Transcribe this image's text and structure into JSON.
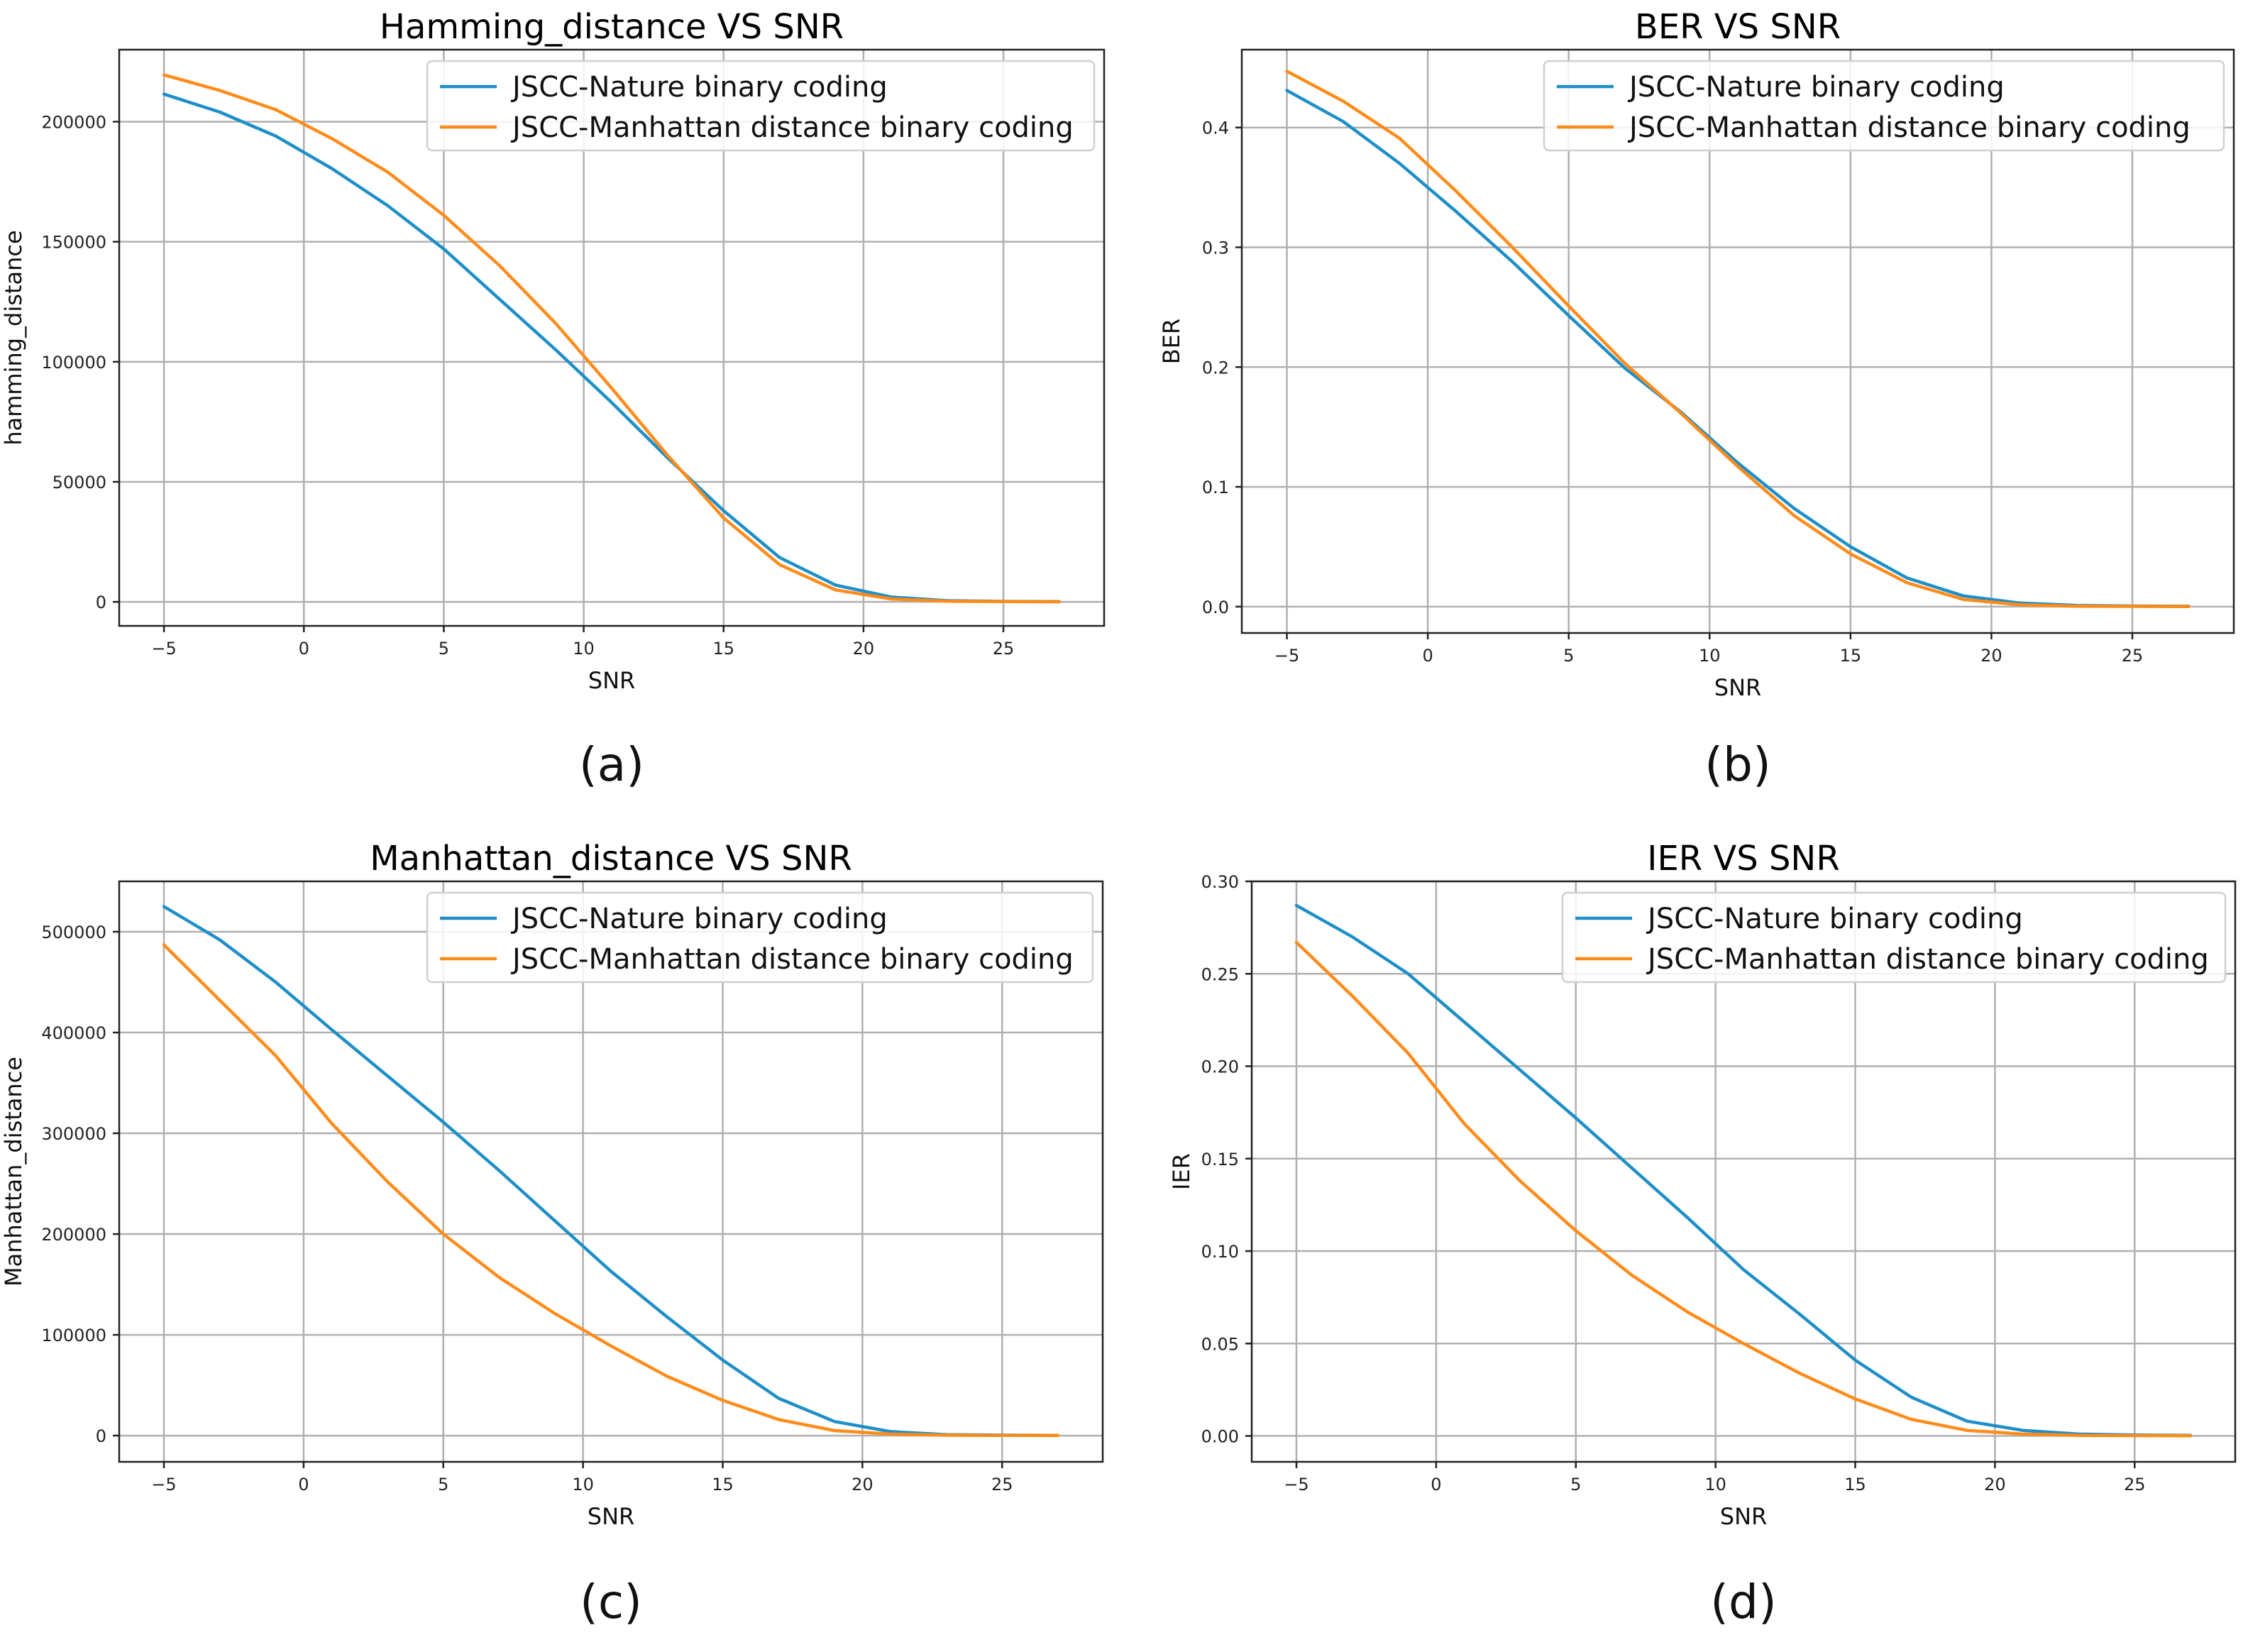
{
  "colors": {
    "nature": "#1f8fc7",
    "manhattan": "#ff8c1a"
  },
  "chart_data": [
    {
      "type": "line",
      "title": "Hamming_distance VS SNR",
      "xlabel": "SNR",
      "ylabel": "hamming_distance",
      "caption": "(a)",
      "grid": true,
      "legend": "top-right",
      "xlim": [
        -6.6,
        28.6
      ],
      "ylim": [
        -10000,
        230000
      ],
      "xticks": [
        -5,
        0,
        5,
        10,
        15,
        20,
        25
      ],
      "xtick_labels": [
        "−5",
        "0",
        "5",
        "10",
        "15",
        "20",
        "25"
      ],
      "yticks": [
        0,
        50000,
        100000,
        150000,
        200000
      ],
      "ytick_labels": [
        "0",
        "50000",
        "100000",
        "150000",
        "200000"
      ],
      "x": [
        -5,
        -3,
        -1,
        1,
        3,
        5,
        7,
        9,
        11,
        13,
        15,
        17,
        19,
        21,
        23,
        25,
        27
      ],
      "series": [
        {
          "name": "JSCC-Nature binary coding",
          "color_key": "nature",
          "values": [
            211500,
            204000,
            194000,
            180500,
            165000,
            147000,
            126000,
            105000,
            83000,
            60000,
            38000,
            18500,
            7000,
            2000,
            500,
            200,
            100
          ]
        },
        {
          "name": "JSCC-Manhattan distance binary coding",
          "color_key": "manhattan",
          "values": [
            219500,
            213000,
            205000,
            193000,
            179000,
            161000,
            140000,
            116000,
            89000,
            61000,
            35000,
            15500,
            5000,
            1200,
            300,
            100,
            50
          ]
        }
      ]
    },
    {
      "type": "line",
      "title": "BER VS SNR",
      "xlabel": "SNR",
      "ylabel": "BER",
      "caption": "(b)",
      "grid": true,
      "legend": "top-right",
      "xlim": [
        -6.6,
        28.6
      ],
      "ylim": [
        -0.022,
        0.465
      ],
      "xticks": [
        -5,
        0,
        5,
        10,
        15,
        20,
        25
      ],
      "xtick_labels": [
        "−5",
        "0",
        "5",
        "10",
        "15",
        "20",
        "25"
      ],
      "yticks": [
        0,
        0.1,
        0.2,
        0.3,
        0.4
      ],
      "ytick_labels": [
        "0.0",
        "0.1",
        "0.2",
        "0.3",
        "0.4"
      ],
      "x": [
        -5,
        -3,
        -1,
        1,
        3,
        5,
        7,
        9,
        11,
        13,
        15,
        17,
        19,
        21,
        23,
        25,
        27
      ],
      "series": [
        {
          "name": "JSCC-Nature binary coding",
          "color_key": "nature",
          "values": [
            0.431,
            0.405,
            0.37,
            0.33,
            0.288,
            0.243,
            0.199,
            0.162,
            0.12,
            0.082,
            0.05,
            0.024,
            0.009,
            0.003,
            0.001,
            0.0005,
            0.0003
          ]
        },
        {
          "name": "JSCC-Manhattan distance binary coding",
          "color_key": "manhattan",
          "values": [
            0.447,
            0.422,
            0.391,
            0.347,
            0.3,
            0.251,
            0.203,
            0.161,
            0.117,
            0.076,
            0.044,
            0.02,
            0.006,
            0.0015,
            0.0004,
            0.0002,
            0.0001
          ]
        }
      ]
    },
    {
      "type": "line",
      "title": "Manhattan_distance VS SNR",
      "xlabel": "SNR",
      "ylabel": "Manhattan_distance",
      "caption": "(c)",
      "grid": true,
      "legend": "top-right",
      "xlim": [
        -6.6,
        28.6
      ],
      "ylim": [
        -26000,
        550000
      ],
      "xticks": [
        -5,
        0,
        5,
        10,
        15,
        20,
        25
      ],
      "xtick_labels": [
        "−5",
        "0",
        "5",
        "10",
        "15",
        "20",
        "25"
      ],
      "yticks": [
        0,
        100000,
        200000,
        300000,
        400000,
        500000
      ],
      "ytick_labels": [
        "0",
        "100000",
        "200000",
        "300000",
        "400000",
        "500000"
      ],
      "x": [
        -5,
        -3,
        -1,
        1,
        3,
        5,
        7,
        9,
        11,
        13,
        15,
        17,
        19,
        21,
        23,
        25,
        27
      ],
      "series": [
        {
          "name": "JSCC-Nature binary coding",
          "color_key": "nature",
          "values": [
            525000,
            492000,
            450000,
            403000,
            357000,
            311000,
            263000,
            213000,
            163000,
            118000,
            75000,
            37000,
            14000,
            4000,
            1000,
            500,
            300
          ]
        },
        {
          "name": "JSCC-Manhattan distance binary coding",
          "color_key": "manhattan",
          "values": [
            487000,
            432000,
            377000,
            310000,
            252000,
            200000,
            157000,
            121000,
            89000,
            59000,
            35000,
            16000,
            5000,
            1500,
            400,
            200,
            100
          ]
        }
      ]
    },
    {
      "type": "line",
      "title": "IER VS SNR",
      "xlabel": "SNR",
      "ylabel": "IER",
      "caption": "(d)",
      "grid": true,
      "legend": "top-right",
      "xlim": [
        -6.6,
        28.6
      ],
      "ylim": [
        -0.014,
        0.3
      ],
      "xticks": [
        -5,
        0,
        5,
        10,
        15,
        20,
        25
      ],
      "xtick_labels": [
        "−5",
        "0",
        "5",
        "10",
        "15",
        "20",
        "25"
      ],
      "yticks": [
        0,
        0.05,
        0.1,
        0.15,
        0.2,
        0.25,
        0.3
      ],
      "ytick_labels": [
        "0.00",
        "0.05",
        "0.10",
        "0.15",
        "0.20",
        "0.25",
        "0.30"
      ],
      "x": [
        -5,
        -3,
        -1,
        1,
        3,
        5,
        7,
        9,
        11,
        13,
        15,
        17,
        19,
        21,
        23,
        25,
        27
      ],
      "series": [
        {
          "name": "JSCC-Nature binary coding",
          "color_key": "nature",
          "values": [
            0.287,
            0.27,
            0.25,
            0.224,
            0.198,
            0.172,
            0.145,
            0.118,
            0.09,
            0.066,
            0.041,
            0.021,
            0.008,
            0.003,
            0.001,
            0.0005,
            0.0003
          ]
        },
        {
          "name": "JSCC-Manhattan distance binary coding",
          "color_key": "manhattan",
          "values": [
            0.267,
            0.238,
            0.207,
            0.169,
            0.138,
            0.111,
            0.087,
            0.067,
            0.05,
            0.034,
            0.02,
            0.009,
            0.003,
            0.001,
            0.0003,
            0.0002,
            0.0001
          ]
        }
      ]
    }
  ]
}
